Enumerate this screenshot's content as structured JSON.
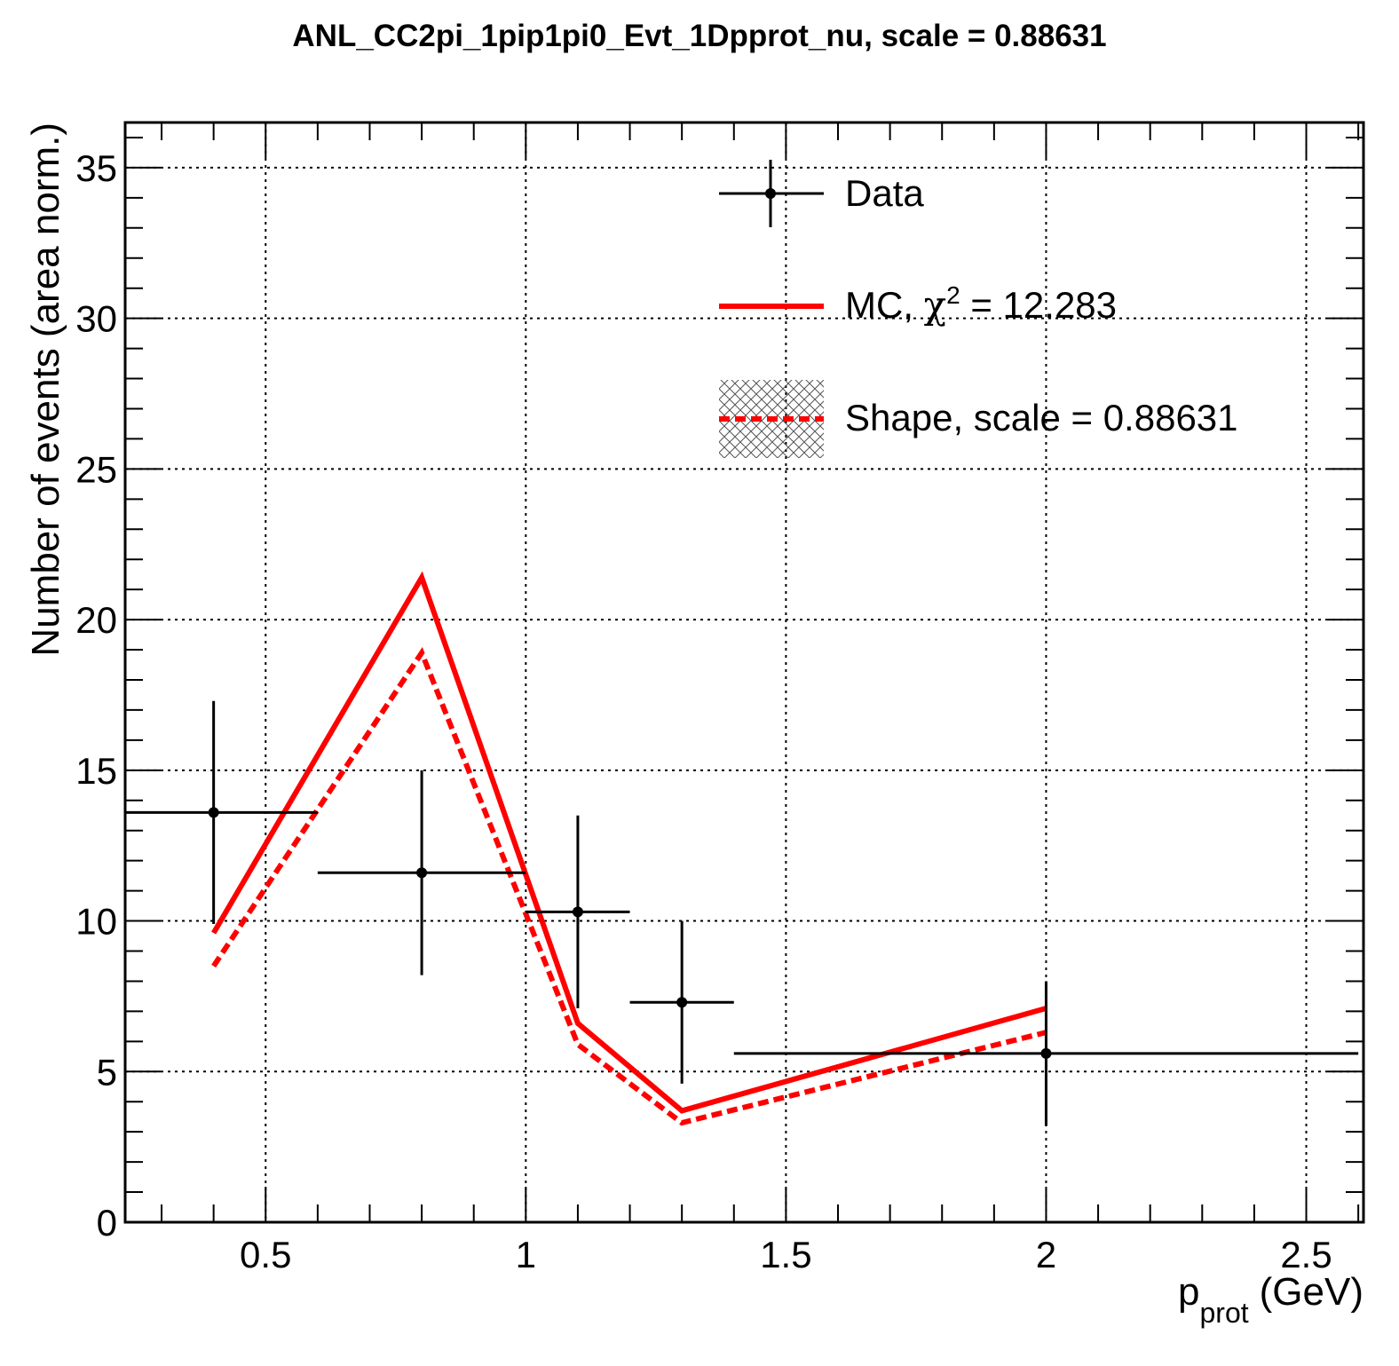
{
  "chart_data": {
    "type": "line",
    "title": "ANL_CC2pi_1pip1pi0_Evt_1Dpprot_nu, scale = 0.88631",
    "xlabel": "p",
    "xlabel_sub": "prot",
    "xlabel_unit": "(GeV)",
    "ylabel": "Number of events (area norm.)",
    "xlim": [
      0.23,
      2.61
    ],
    "ylim": [
      0,
      36.5
    ],
    "grid": true,
    "x_ticks": [
      0.5,
      1,
      1.5,
      2,
      2.5
    ],
    "x_tick_labels": [
      "0.5",
      "1",
      "1.5",
      "2",
      "2.5"
    ],
    "y_ticks": [
      0,
      5,
      10,
      15,
      20,
      25,
      30,
      35
    ],
    "y_tick_labels": [
      "0",
      "5",
      "10",
      "15",
      "20",
      "25",
      "30",
      "35"
    ],
    "legend_position": "top-right",
    "series": [
      {
        "name": "Data",
        "kind": "errorbar",
        "color": "#000000",
        "points": [
          {
            "x": 0.4,
            "y": 13.6,
            "xlo": 0.2,
            "xhi": 0.6,
            "ylo": 9.9,
            "yhi": 17.3
          },
          {
            "x": 0.8,
            "y": 11.6,
            "xlo": 0.6,
            "xhi": 1.0,
            "ylo": 8.2,
            "yhi": 15.0
          },
          {
            "x": 1.1,
            "y": 10.3,
            "xlo": 1.0,
            "xhi": 1.2,
            "ylo": 7.1,
            "yhi": 13.5
          },
          {
            "x": 1.3,
            "y": 7.3,
            "xlo": 1.2,
            "xhi": 1.4,
            "ylo": 4.6,
            "yhi": 10.0
          },
          {
            "x": 2.0,
            "y": 5.6,
            "xlo": 1.4,
            "xhi": 2.6,
            "ylo": 3.2,
            "yhi": 8.0
          }
        ]
      },
      {
        "name": "MC, χ² = 12.283",
        "legend_prefix": "MC, ",
        "legend_chi": "χ",
        "legend_sup": "2",
        "legend_suffix": " = 12.283",
        "kind": "line",
        "color": "#ff0000",
        "x": [
          0.4,
          0.8,
          1.1,
          1.3,
          2.0
        ],
        "y": [
          9.6,
          21.4,
          6.6,
          3.7,
          7.1
        ]
      },
      {
        "name": "Shape, scale = 0.88631",
        "kind": "dashed-line",
        "color": "#ff0000",
        "x": [
          0.4,
          0.8,
          1.1,
          1.3,
          2.0
        ],
        "y": [
          8.5,
          18.9,
          5.9,
          3.3,
          6.3
        ]
      }
    ]
  }
}
